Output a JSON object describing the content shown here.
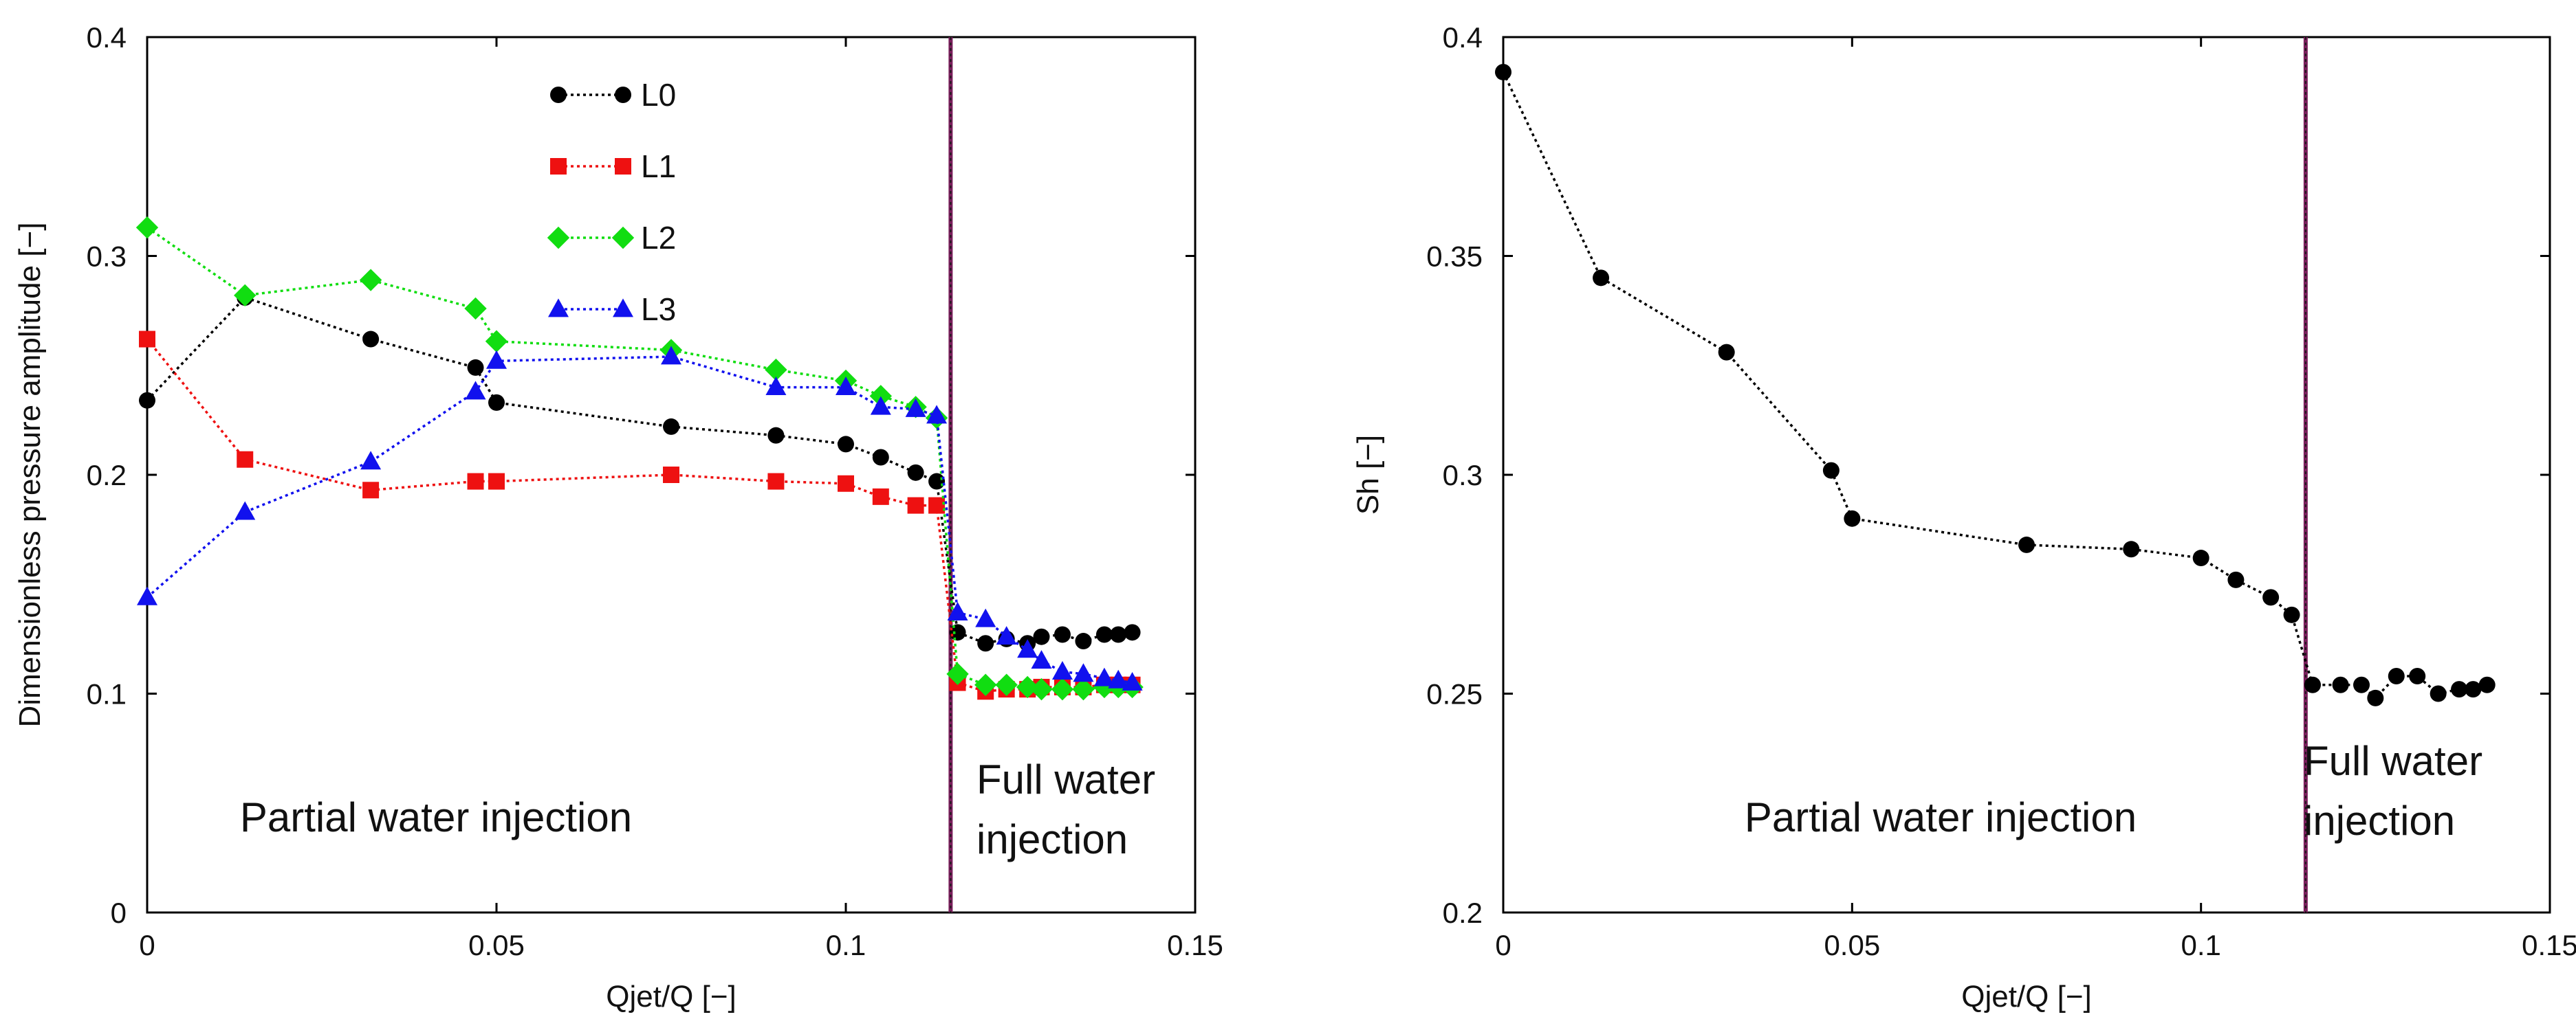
{
  "chart_data": [
    {
      "type": "line",
      "xlabel": "Qjet/Q [−]",
      "ylabel": "Dimensionless pressure amplitude [−]",
      "xlim": [
        0,
        0.15
      ],
      "ylim": [
        0,
        0.4
      ],
      "xticks": [
        0,
        0.05,
        0.1,
        0.15
      ],
      "xtick_labels": [
        "0",
        "0.05",
        "0.1",
        "0.15"
      ],
      "yticks": [
        0,
        0.1,
        0.2,
        0.3,
        0.4
      ],
      "ytick_labels": [
        "0",
        "0.1",
        "0.2",
        "0.3",
        "0.4"
      ],
      "legend_position": "top-center",
      "vline_x": 0.115,
      "vline_color": "#7a1f5c",
      "annotations": [
        {
          "id": "partial",
          "lines": [
            "Partial water injection"
          ]
        },
        {
          "id": "full",
          "lines": [
            "Full water",
            "injection"
          ]
        }
      ],
      "series": [
        {
          "name": "L0",
          "color": "#000000",
          "marker": "circle",
          "x": [
            0,
            0.014,
            0.032,
            0.047,
            0.05,
            0.075,
            0.09,
            0.1,
            0.105,
            0.11,
            0.113,
            0.116,
            0.12,
            0.123,
            0.126,
            0.128,
            0.131,
            0.134,
            0.137,
            0.139,
            0.141
          ],
          "y": [
            0.234,
            0.281,
            0.262,
            0.249,
            0.233,
            0.222,
            0.218,
            0.214,
            0.208,
            0.201,
            0.197,
            0.128,
            0.123,
            0.125,
            0.123,
            0.126,
            0.127,
            0.124,
            0.127,
            0.127,
            0.128
          ]
        },
        {
          "name": "L1",
          "color": "#ee1111",
          "marker": "square",
          "x": [
            0,
            0.014,
            0.032,
            0.047,
            0.05,
            0.075,
            0.09,
            0.1,
            0.105,
            0.11,
            0.113,
            0.116,
            0.12,
            0.123,
            0.126,
            0.128,
            0.131,
            0.134,
            0.137,
            0.139,
            0.141
          ],
          "y": [
            0.262,
            0.207,
            0.193,
            0.197,
            0.197,
            0.2,
            0.197,
            0.196,
            0.19,
            0.186,
            0.186,
            0.105,
            0.101,
            0.102,
            0.102,
            0.103,
            0.103,
            0.103,
            0.104,
            0.104,
            0.104
          ]
        },
        {
          "name": "L2",
          "color": "#11dd11",
          "marker": "diamond",
          "x": [
            0,
            0.014,
            0.032,
            0.047,
            0.05,
            0.075,
            0.09,
            0.1,
            0.105,
            0.11,
            0.113,
            0.116,
            0.12,
            0.123,
            0.126,
            0.128,
            0.131,
            0.134,
            0.137,
            0.139,
            0.141
          ],
          "y": [
            0.313,
            0.282,
            0.289,
            0.276,
            0.261,
            0.257,
            0.248,
            0.243,
            0.236,
            0.231,
            0.226,
            0.109,
            0.104,
            0.104,
            0.103,
            0.102,
            0.102,
            0.102,
            0.103,
            0.103,
            0.103
          ]
        },
        {
          "name": "L3",
          "color": "#1111ee",
          "marker": "triangle",
          "x": [
            0,
            0.014,
            0.032,
            0.047,
            0.05,
            0.075,
            0.09,
            0.1,
            0.105,
            0.11,
            0.113,
            0.116,
            0.12,
            0.123,
            0.126,
            0.128,
            0.131,
            0.134,
            0.137,
            0.139,
            0.141
          ],
          "y": [
            0.144,
            0.183,
            0.206,
            0.238,
            0.252,
            0.254,
            0.24,
            0.24,
            0.231,
            0.23,
            0.227,
            0.137,
            0.134,
            0.126,
            0.12,
            0.115,
            0.11,
            0.109,
            0.107,
            0.106,
            0.105
          ]
        }
      ]
    },
    {
      "type": "line",
      "xlabel": "Qjet/Q [−]",
      "ylabel": "Sh [−]",
      "xlim": [
        0,
        0.15
      ],
      "ylim": [
        0.2,
        0.4
      ],
      "xticks": [
        0,
        0.05,
        0.1,
        0.15
      ],
      "xtick_labels": [
        "0",
        "0.05",
        "0.1",
        "0.15"
      ],
      "yticks": [
        0.2,
        0.25,
        0.3,
        0.35,
        0.4
      ],
      "ytick_labels": [
        "0.2",
        "0.25",
        "0.3",
        "0.35",
        "0.4"
      ],
      "vline_x": 0.115,
      "vline_color": "#7a1f5c",
      "annotations": [
        {
          "id": "partial",
          "lines": [
            "Partial water injection"
          ]
        },
        {
          "id": "full",
          "lines": [
            "Full water",
            "injection"
          ]
        }
      ],
      "series": [
        {
          "name": "Sh",
          "color": "#000000",
          "marker": "circle",
          "x": [
            0,
            0.014,
            0.032,
            0.047,
            0.05,
            0.075,
            0.09,
            0.1,
            0.105,
            0.11,
            0.113,
            0.116,
            0.12,
            0.123,
            0.125,
            0.128,
            0.131,
            0.134,
            0.137,
            0.139,
            0.141
          ],
          "y": [
            0.392,
            0.345,
            0.328,
            0.301,
            0.29,
            0.284,
            0.283,
            0.281,
            0.276,
            0.272,
            0.268,
            0.252,
            0.252,
            0.252,
            0.249,
            0.254,
            0.254,
            0.25,
            0.251,
            0.251,
            0.252
          ]
        }
      ]
    }
  ]
}
